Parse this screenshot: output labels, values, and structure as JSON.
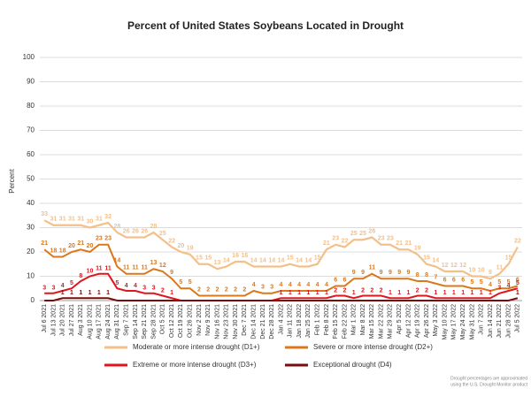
{
  "chart_data": {
    "type": "line",
    "title": "Percent of United States Soybeans Located in Drought",
    "y_label": "Percent",
    "footnote": [
      "Drought percentages are approximated",
      "using the U.S. Drought Monitor product"
    ],
    "categories": [
      "Jul 6 2021",
      "Jul 13 2021",
      "Jul 20 2021",
      "Jul 27 2021",
      "Aug 3 2021",
      "Aug 10 2021",
      "Aug 17 2021",
      "Aug 24 2021",
      "Aug 31 2021",
      "Sep 7 2021",
      "Sep 14 2021",
      "Sep 21 2021",
      "Sep 28 2021",
      "Oct 5 2021",
      "Oct 12 2021",
      "Oct 19 2021",
      "Oct 26 2021",
      "Nov 2 2021",
      "Nov 9 2021",
      "Nov 16 2021",
      "Nov 23 2021",
      "Nov 30 2021",
      "Dec 7 2021",
      "Dec 14 2021",
      "Dec 21 2021",
      "Dec 28 2021",
      "Jan 4 2022",
      "Jan 11 2022",
      "Jan 18 2022",
      "Jan 25 2022",
      "Feb 1 2022",
      "Feb 8 2022",
      "Feb 15 2022",
      "Feb 22 2022",
      "Mar 1 2022",
      "Mar 8 2022",
      "Mar 15 2022",
      "Mar 22 2022",
      "Mar 29 2022",
      "Apr 5 2022",
      "Apr 12 2022",
      "Apr 19 2022",
      "Apr 26 2022",
      "May 3 2022",
      "May 10 2022",
      "May 17 2022",
      "May 24 2022",
      "May 31 2022",
      "Jun 7 2022",
      "Jun 14 2022",
      "Jun 21 2022",
      "Jun 28 2022",
      "Jul 5 2022"
    ],
    "series": [
      {
        "name": "Moderate or more intense drought (D1+)",
        "color": "#f3c08a",
        "values": [
          33,
          31,
          31,
          31,
          31,
          30,
          31,
          32,
          28,
          26,
          26,
          26,
          28,
          25,
          22,
          20,
          19,
          15,
          15,
          13,
          14,
          16,
          16,
          14,
          14,
          14,
          14,
          15,
          14,
          14,
          15,
          21,
          23,
          22,
          25,
          25,
          26,
          23,
          23,
          21,
          21,
          19,
          15,
          14,
          12,
          12,
          12,
          10,
          10,
          9,
          11,
          15,
          22
        ]
      },
      {
        "name": "Severe or more intense drought (D2+)",
        "color": "#d9781c",
        "values": [
          21,
          18,
          18,
          20,
          21,
          20,
          23,
          23,
          14,
          11,
          11,
          11,
          13,
          12,
          9,
          5,
          5,
          2,
          2,
          2,
          2,
          2,
          2,
          4,
          3,
          3,
          4,
          4,
          4,
          4,
          4,
          4,
          6,
          6,
          9,
          9,
          11,
          9,
          9,
          9,
          9,
          8,
          8,
          7,
          6,
          6,
          6,
          5,
          5,
          4,
          5,
          5,
          6
        ]
      },
      {
        "name": "Extreme or more intense drought (D3+)",
        "color": "#e0161e",
        "values": [
          3,
          3,
          4,
          5,
          8,
          10,
          11,
          11,
          5,
          4,
          4,
          3,
          3,
          2,
          1,
          0,
          0,
          0,
          0,
          0,
          0,
          0,
          0,
          0,
          0,
          0,
          1,
          1,
          1,
          1,
          1,
          1,
          2,
          2,
          1,
          2,
          2,
          2,
          1,
          1,
          1,
          2,
          2,
          1,
          1,
          1,
          1,
          1,
          1,
          1,
          3,
          4,
          5
        ]
      },
      {
        "name": "Exceptional drought (D4)",
        "color": "#7a0c0c",
        "values": [
          0,
          0,
          1,
          1,
          1,
          1,
          1,
          1,
          0,
          0,
          0,
          0,
          0,
          0,
          0,
          0,
          0,
          0,
          0,
          0,
          0,
          0,
          0,
          0,
          0,
          0,
          0,
          0,
          0,
          0,
          0,
          0,
          0,
          0,
          0,
          0,
          0,
          0,
          0,
          0,
          0,
          0,
          0,
          0,
          0,
          0,
          0,
          0,
          0,
          0,
          0,
          0,
          1
        ]
      }
    ],
    "ylim": [
      0,
      100
    ],
    "yticks": [
      0,
      10,
      20,
      30,
      40,
      50,
      60,
      70,
      80,
      90,
      100
    ],
    "grid": true
  }
}
